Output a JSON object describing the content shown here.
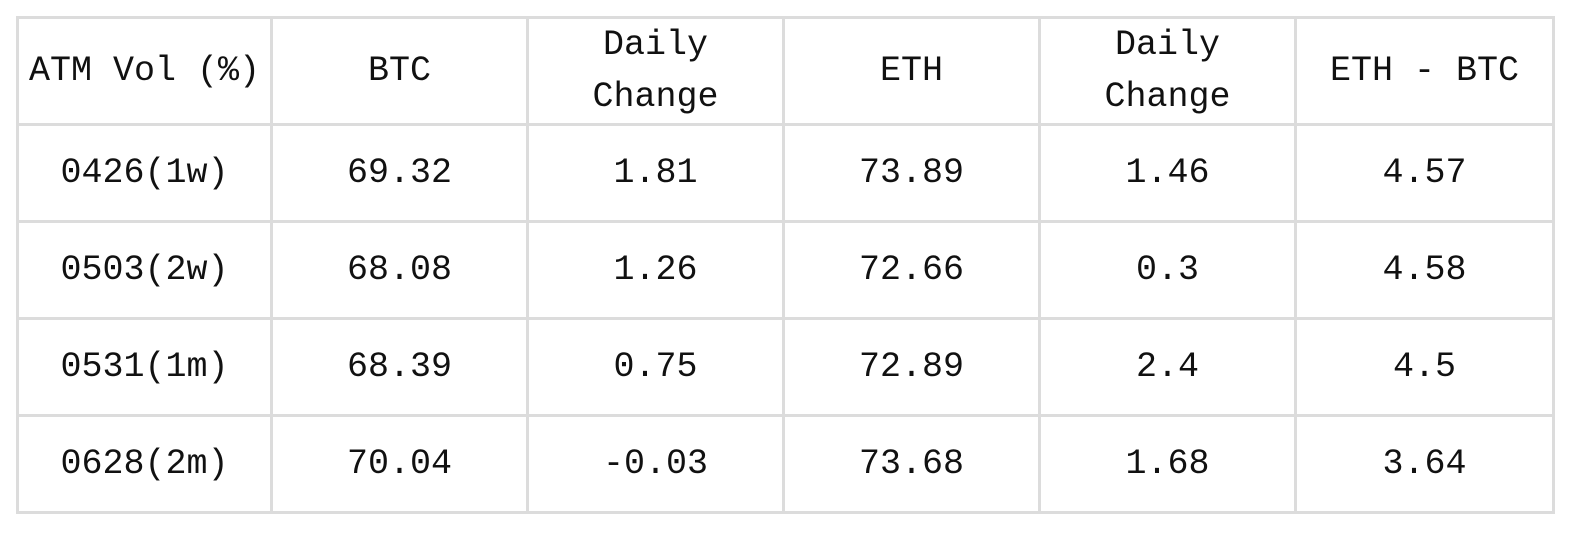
{
  "table": {
    "headers": [
      "ATM Vol (%)",
      "BTC",
      "Daily Change",
      "ETH",
      "Daily Change",
      "ETH - BTC"
    ],
    "rows": [
      [
        "0426(1w)",
        "69.32",
        "1.81",
        "73.89",
        "1.46",
        "4.57"
      ],
      [
        "0503(2w)",
        "68.08",
        "1.26",
        "72.66",
        "0.3",
        "4.58"
      ],
      [
        "0531(1m)",
        "68.39",
        "0.75",
        "72.89",
        "2.4",
        "4.5"
      ],
      [
        "0628(2m)",
        "70.04",
        "-0.03",
        "73.68",
        "1.68",
        "3.64"
      ]
    ]
  }
}
